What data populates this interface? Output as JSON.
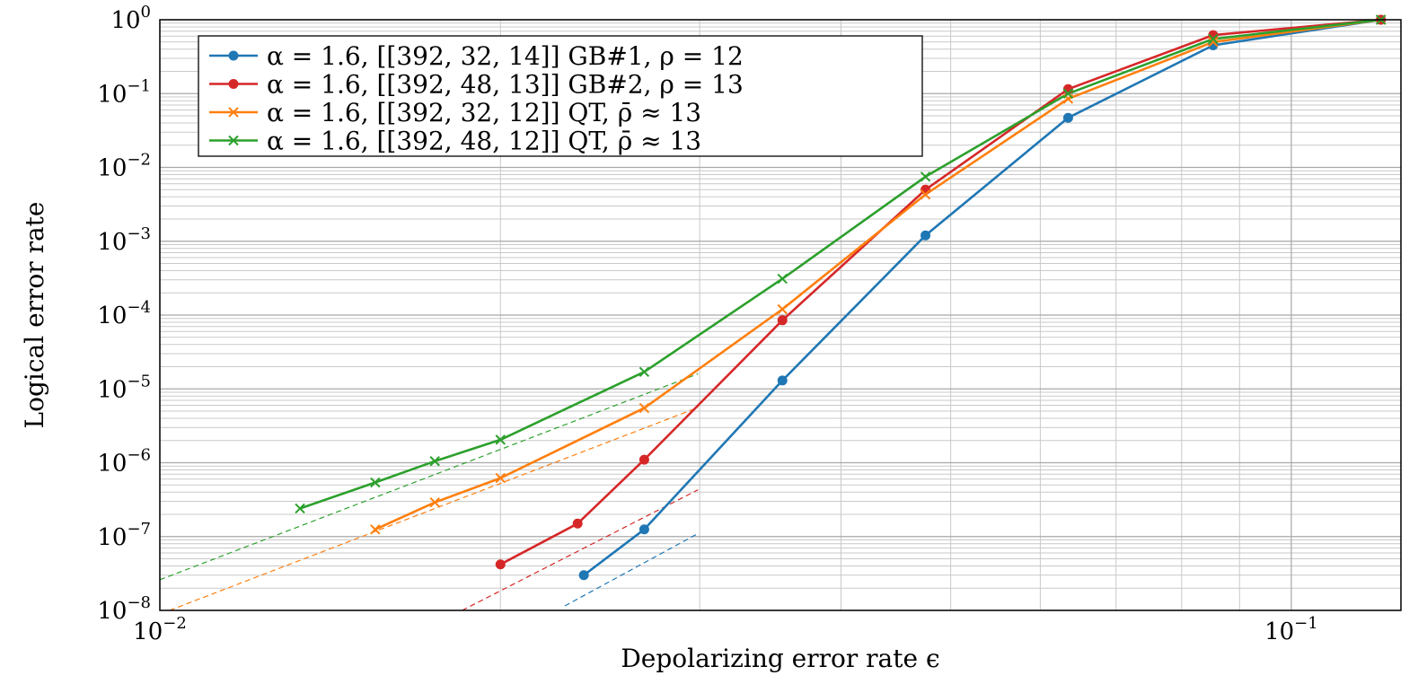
{
  "chart_data": {
    "type": "line",
    "xscale": "log",
    "yscale": "log",
    "xlim": [
      0.01,
      0.125
    ],
    "ylim": [
      1e-08,
      1
    ],
    "xlabel": "Depolarizing error rate ϵ",
    "ylabel": "Logical error rate",
    "grid": true,
    "legend_position": "top-left",
    "x_ticks": [
      {
        "value": 0.01,
        "base": "10",
        "exp": "−2"
      },
      {
        "value": 0.1,
        "base": "10",
        "exp": "−1"
      }
    ],
    "y_ticks": [
      {
        "value": 1,
        "base": "10",
        "exp": "0"
      },
      {
        "value": 0.1,
        "base": "10",
        "exp": "−1"
      },
      {
        "value": 0.01,
        "base": "10",
        "exp": "−2"
      },
      {
        "value": 0.001,
        "base": "10",
        "exp": "−3"
      },
      {
        "value": 0.0001,
        "base": "10",
        "exp": "−4"
      },
      {
        "value": 1e-05,
        "base": "10",
        "exp": "−5"
      },
      {
        "value": 1e-06,
        "base": "10",
        "exp": "−6"
      },
      {
        "value": 1e-07,
        "base": "10",
        "exp": "−7"
      },
      {
        "value": 1e-08,
        "base": "10",
        "exp": "−8"
      }
    ],
    "series": [
      {
        "name": "α = 1.6, [[392, 32, 14]] GB#1, ρ = 12",
        "color": "#1f77b4",
        "marker": "circle",
        "x": [
          0.0237,
          0.0268,
          0.0355,
          0.0475,
          0.0635,
          0.0853,
          0.12
        ],
        "y": [
          3e-08,
          1.25e-07,
          1.3e-05,
          0.0012,
          0.047,
          0.45,
          1.0
        ],
        "fit_x": [
          0.0228,
          0.0299
        ],
        "fit_y": [
          1.15e-08,
          1.1e-07
        ]
      },
      {
        "name": "α = 1.6, [[392, 48, 13]] GB#2, ρ = 13",
        "color": "#d62728",
        "marker": "circle",
        "x": [
          0.02,
          0.0234,
          0.0268,
          0.0355,
          0.0475,
          0.0635,
          0.0853,
          0.12
        ],
        "y": [
          4.2e-08,
          1.5e-07,
          1.1e-06,
          8.5e-05,
          0.005,
          0.115,
          0.62,
          1.0
        ],
        "fit_x": [
          0.0185,
          0.0299
        ],
        "fit_y": [
          1e-08,
          4.3e-07
        ]
      },
      {
        "name": "α = 1.6, [[392, 32, 12]] QT, ρ̄ ≈ 13",
        "color": "#ff7f0e",
        "marker": "cross",
        "x": [
          0.0155,
          0.0175,
          0.02,
          0.0268,
          0.0355,
          0.0475,
          0.0635,
          0.0853,
          0.12
        ],
        "y": [
          1.25e-07,
          2.9e-07,
          6.2e-07,
          5.5e-06,
          0.00012,
          0.0043,
          0.085,
          0.5,
          1.0
        ],
        "fit_x": [
          0.0102,
          0.0299
        ],
        "fit_y": [
          1e-08,
          5.6e-06
        ]
      },
      {
        "name": "α = 1.6, [[392, 48, 12]] QT, ρ̄ ≈ 13",
        "color": "#2ca02c",
        "marker": "cross",
        "x": [
          0.0133,
          0.0155,
          0.0175,
          0.02,
          0.0268,
          0.0355,
          0.0475,
          0.0635,
          0.0853,
          0.12
        ],
        "y": [
          2.4e-07,
          5.4e-07,
          1.05e-06,
          2.05e-06,
          1.7e-05,
          0.00031,
          0.0075,
          0.1,
          0.55,
          1.0
        ],
        "fit_x": [
          0.01,
          0.0299
        ],
        "fit_y": [
          2.6e-08,
          1.6e-05
        ]
      }
    ]
  }
}
